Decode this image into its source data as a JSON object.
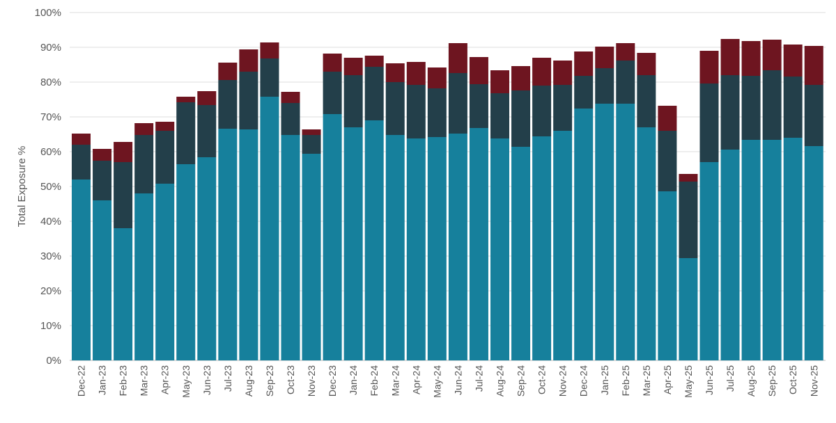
{
  "chart_data": {
    "type": "stacked-bar",
    "title": "",
    "xlabel": "",
    "ylabel": "Total Exposure %",
    "ylim": [
      0,
      100
    ],
    "yticks": [
      "0%",
      "10%",
      "20%",
      "30%",
      "40%",
      "50%",
      "60%",
      "70%",
      "80%",
      "90%",
      "100%"
    ],
    "grid": true,
    "legend": "none",
    "categories": [
      "Dec-22",
      "Jan-23",
      "Feb-23",
      "Mar-23",
      "Apr-23",
      "May-23",
      "Jun-23",
      "Jul-23",
      "Aug-23",
      "Sep-23",
      "Oct-23",
      "Nov-23",
      "Dec-23",
      "Jan-24",
      "Feb-24",
      "Mar-24",
      "Apr-24",
      "May-24",
      "Jun-24",
      "Jul-24",
      "Aug-24",
      "Sep-24",
      "Oct-24",
      "Nov-24",
      "Dec-24",
      "Jan-25",
      "Feb-25",
      "Mar-25",
      "Apr-25",
      "May-25",
      "Jun-25",
      "Jul-25",
      "Aug-25",
      "Sep-25",
      "Oct-25",
      "Nov-25"
    ],
    "series": [
      {
        "color": "#16809c",
        "values": [
          52,
          46,
          38,
          48,
          50.8,
          56.4,
          58.4,
          66.6,
          66.4,
          75.8,
          64.8,
          59.4,
          70.8,
          67,
          69,
          64.8,
          63.8,
          64.2,
          65.2,
          66.8,
          63.8,
          61.4,
          64.4,
          66,
          72.4,
          73.8,
          73.8,
          67,
          48.6,
          29.4,
          57,
          60.6,
          63.4,
          63.4,
          64,
          61.6
        ]
      },
      {
        "color": "#233f4a",
        "values": [
          10,
          11.4,
          19,
          16.8,
          15.2,
          17.8,
          15,
          14,
          16.6,
          11,
          9.2,
          5.4,
          12.2,
          15,
          15.4,
          15.2,
          15.4,
          14,
          17.4,
          12.6,
          13,
          16.2,
          14.6,
          13.2,
          9.4,
          10.2,
          12.4,
          15,
          17.4,
          22,
          22.6,
          21.4,
          18.4,
          20,
          17.6,
          17.6
        ]
      },
      {
        "color": "#6e1520",
        "values": [
          3.2,
          3.4,
          5.8,
          3.4,
          2.6,
          1.6,
          4,
          5,
          6.4,
          4.6,
          3.2,
          1.6,
          5.2,
          5,
          3.2,
          5.4,
          6.6,
          6,
          8.6,
          7.8,
          6.6,
          7,
          8,
          7,
          7,
          6.2,
          5,
          6.4,
          7.2,
          2.2,
          9.4,
          10.4,
          10,
          8.8,
          9.2,
          11.2
        ]
      }
    ]
  }
}
